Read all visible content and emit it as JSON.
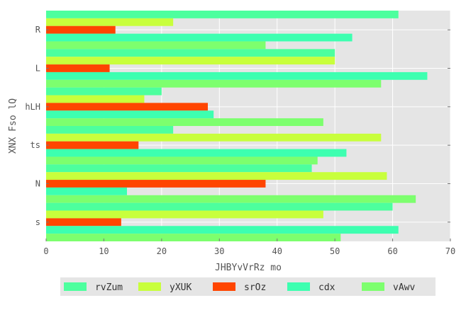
{
  "chart_data": {
    "type": "bar",
    "orientation": "horizontal",
    "categories": [
      "R",
      "L",
      "hLH",
      "ts",
      "N",
      "s"
    ],
    "series": [
      {
        "name": "rvZum",
        "color": "#4dff9e",
        "values": [
          61,
          50,
          20,
          22,
          46,
          60
        ]
      },
      {
        "name": "yXUK",
        "color": "#c8ff3c",
        "values": [
          22,
          50,
          17,
          58,
          59,
          48
        ]
      },
      {
        "name": "srOz",
        "color": "#ff4500",
        "values": [
          12,
          11,
          28,
          16,
          38,
          13
        ]
      },
      {
        "name": "cdx",
        "color": "#3dffb0",
        "values": [
          53,
          66,
          29,
          52,
          14,
          61
        ]
      },
      {
        "name": "vAwv",
        "color": "#7dff6e",
        "values": [
          38,
          58,
          48,
          47,
          64,
          51
        ]
      }
    ],
    "xlabel": "JHBYvVrRz mo",
    "ylabel": "XNX Fso lQ",
    "xlim": [
      0,
      70
    ],
    "xticks": [
      0,
      10,
      20,
      30,
      40,
      50,
      60,
      70
    ],
    "grid": true,
    "legend_position": "bottom"
  }
}
